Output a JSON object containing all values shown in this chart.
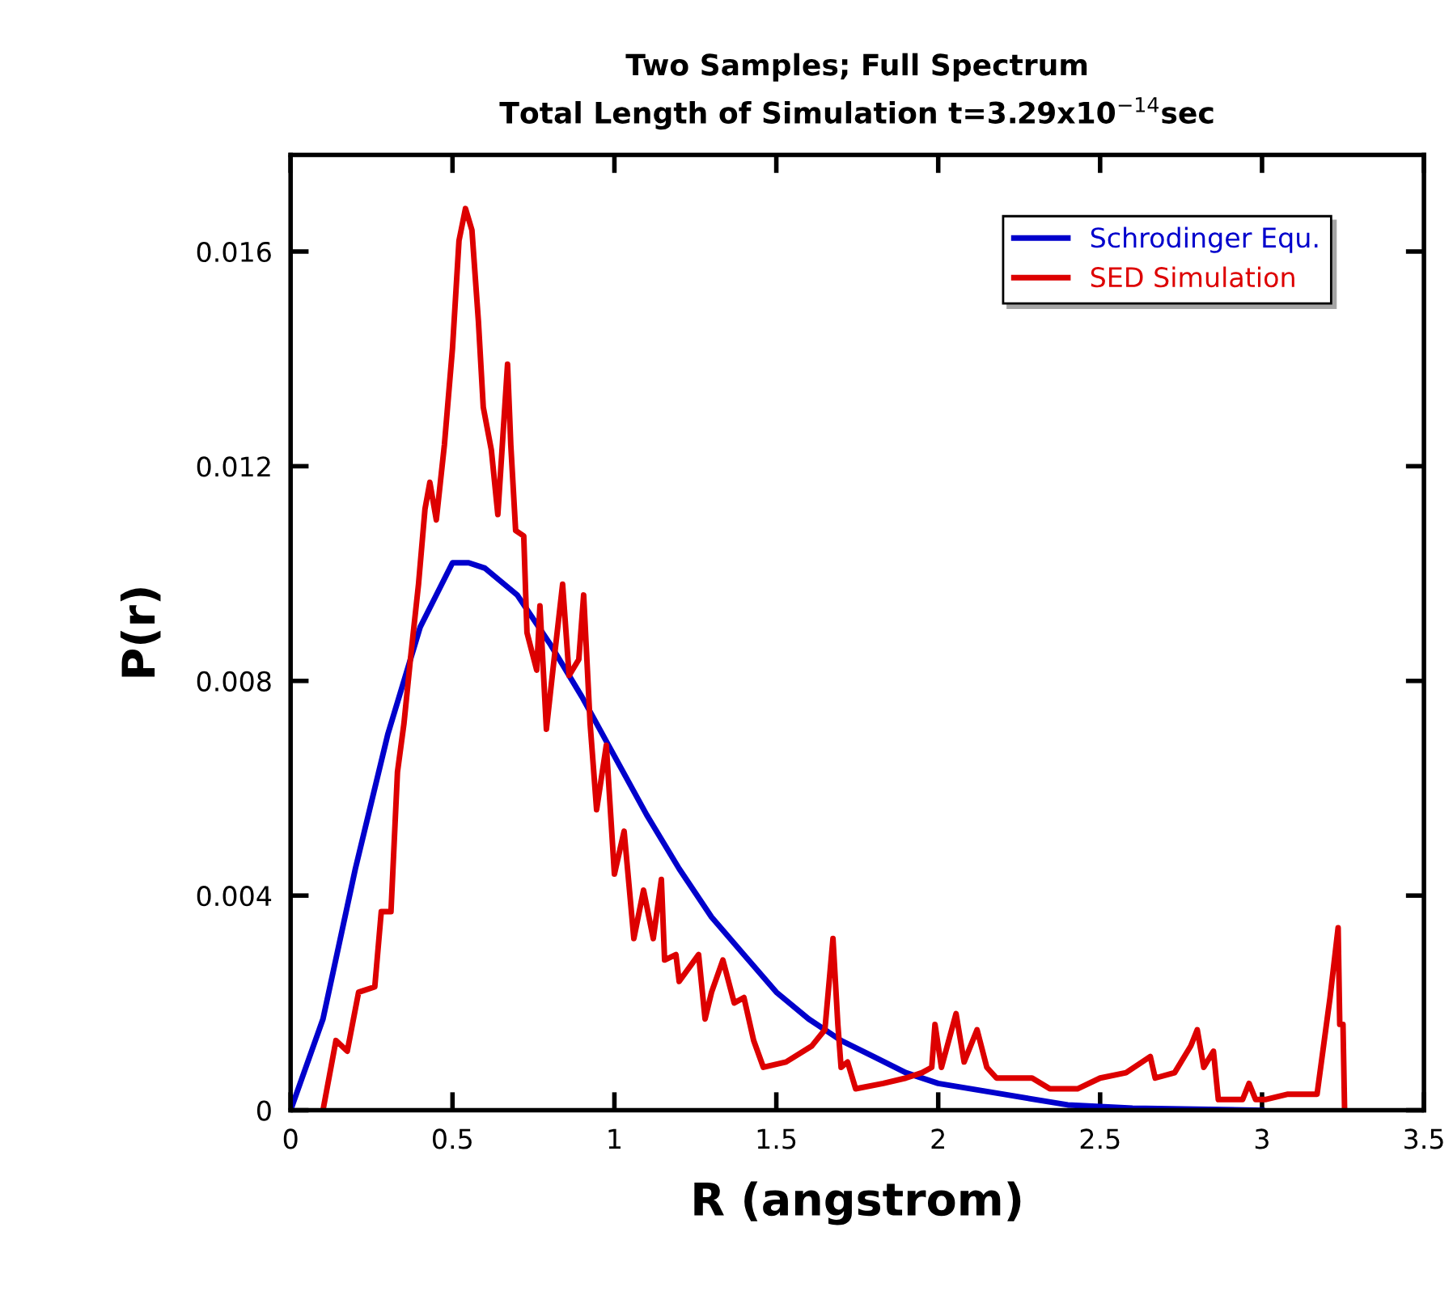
{
  "chart_data": {
    "type": "line",
    "title": "Two Samples; Full Spectrum\nTotal Length of Simulation t=3.29x10$^{−14}$sec",
    "xlabel": "R (angstrom)",
    "ylabel": "P(r)",
    "xlim": [
      0,
      3.5
    ],
    "xticks": [
      0,
      0.5,
      1,
      1.5,
      2,
      2.5,
      3,
      3.5
    ],
    "ylim": [
      0,
      0.0178
    ],
    "yticks": [
      0,
      0.004,
      0.008,
      0.012,
      0.016
    ],
    "grid": false,
    "legend": "top right",
    "marker": "none",
    "line_style": "solid",
    "series": [
      {
        "name": "Schrodinger Equ.",
        "color": "#0000cc",
        "x": [
          0,
          0.1,
          0.2,
          0.3,
          0.4,
          0.5,
          0.55,
          0.6,
          0.7,
          0.8,
          0.9,
          1.0,
          1.1,
          1.2,
          1.3,
          1.4,
          1.5,
          1.6,
          1.7,
          1.8,
          1.9,
          2.0,
          2.2,
          2.4,
          2.6,
          3.0
        ],
        "values": [
          0,
          0.0017,
          0.0045,
          0.007,
          0.009,
          0.0102,
          0.0102,
          0.0101,
          0.0096,
          0.0087,
          0.0077,
          0.0066,
          0.0055,
          0.0045,
          0.0036,
          0.0029,
          0.0022,
          0.0017,
          0.0013,
          0.001,
          0.0007,
          0.0005,
          0.0003,
          0.0001,
          4e-05,
          0
        ]
      },
      {
        "name": "SED Simulation",
        "color": "#dd0000",
        "x": [
          0.1,
          0.14,
          0.175,
          0.21,
          0.26,
          0.28,
          0.31,
          0.33,
          0.35,
          0.37,
          0.395,
          0.415,
          0.43,
          0.45,
          0.475,
          0.5,
          0.52,
          0.54,
          0.56,
          0.58,
          0.595,
          0.62,
          0.64,
          0.67,
          0.68,
          0.695,
          0.72,
          0.73,
          0.76,
          0.77,
          0.79,
          0.81,
          0.84,
          0.86,
          0.89,
          0.905,
          0.925,
          0.945,
          0.975,
          1.0,
          1.03,
          1.06,
          1.09,
          1.12,
          1.145,
          1.155,
          1.19,
          1.2,
          1.26,
          1.28,
          1.3,
          1.335,
          1.37,
          1.4,
          1.43,
          1.46,
          1.53,
          1.61,
          1.65,
          1.675,
          1.69,
          1.7,
          1.72,
          1.745,
          1.83,
          1.9,
          1.95,
          1.98,
          1.99,
          2.01,
          2.055,
          2.08,
          2.12,
          2.15,
          2.18,
          2.29,
          2.345,
          2.43,
          2.5,
          2.58,
          2.655,
          2.67,
          2.73,
          2.78,
          2.8,
          2.82,
          2.85,
          2.865,
          2.94,
          2.96,
          2.98,
          3.01,
          3.08,
          3.17,
          3.19,
          3.21,
          3.235,
          3.24,
          3.25,
          3.255
        ],
        "values": [
          0,
          0.0013,
          0.0011,
          0.0022,
          0.0023,
          0.0037,
          0.0037,
          0.0063,
          0.0072,
          0.0084,
          0.0098,
          0.0112,
          0.0117,
          0.011,
          0.0124,
          0.0142,
          0.0162,
          0.0168,
          0.0164,
          0.0147,
          0.0131,
          0.0123,
          0.0111,
          0.0139,
          0.0124,
          0.0108,
          0.0107,
          0.0089,
          0.0082,
          0.0094,
          0.0071,
          0.0082,
          0.0098,
          0.0081,
          0.0084,
          0.0096,
          0.0072,
          0.0056,
          0.0068,
          0.0044,
          0.0052,
          0.0032,
          0.0041,
          0.0032,
          0.0043,
          0.0028,
          0.0029,
          0.0024,
          0.0029,
          0.0017,
          0.0022,
          0.0028,
          0.002,
          0.0021,
          0.0013,
          0.0008,
          0.0009,
          0.0012,
          0.0015,
          0.0032,
          0.0016,
          0.0008,
          0.0009,
          0.0004,
          0.0005,
          0.0006,
          0.0007,
          0.0008,
          0.0016,
          0.0008,
          0.0018,
          0.0009,
          0.0015,
          0.0008,
          0.0006,
          0.0006,
          0.0004,
          0.0004,
          0.0006,
          0.0007,
          0.001,
          0.0006,
          0.0007,
          0.0012,
          0.0015,
          0.0008,
          0.0011,
          0.0002,
          0.0002,
          0.0005,
          0.0002,
          0.0002,
          0.0003,
          0.0003,
          0.0012,
          0.0021,
          0.0034,
          0.0016,
          0.0016,
          0
        ]
      }
    ]
  }
}
